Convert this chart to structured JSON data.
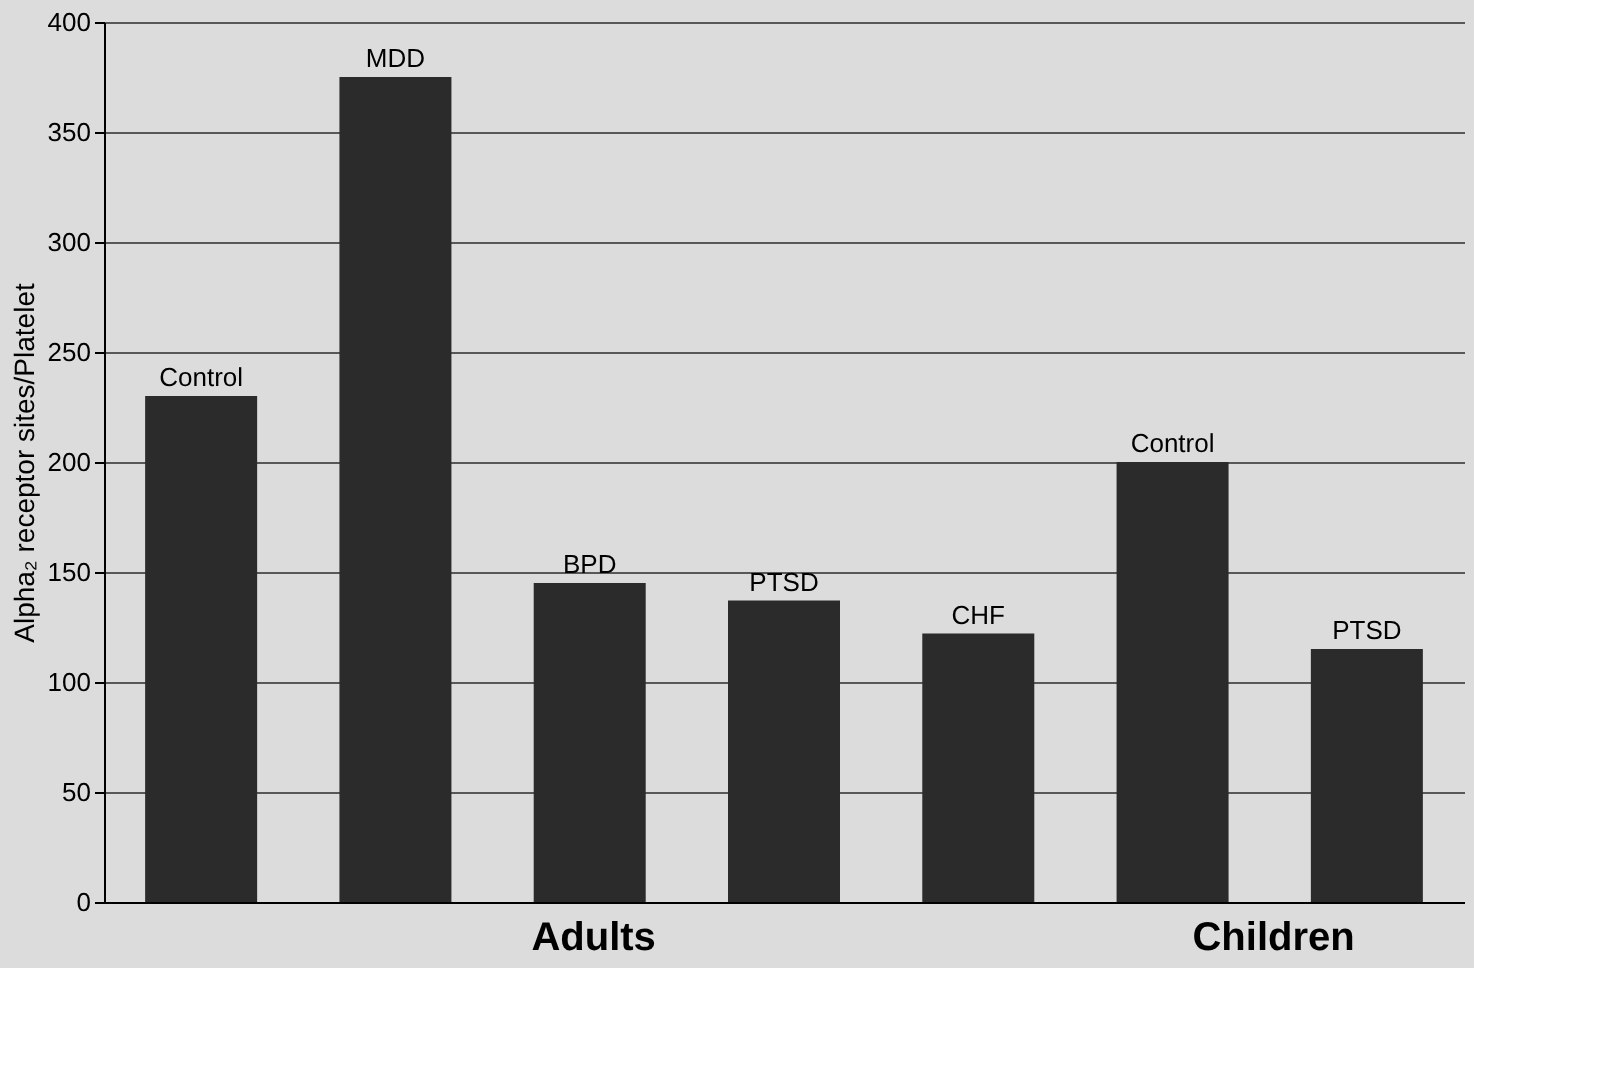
{
  "chart_data": {
    "type": "bar",
    "ylabel": "Alpha₂ receptor sites/Platelet",
    "categories": [
      "Control",
      "MDD",
      "BPD",
      "PTSD",
      "CHF",
      "Control",
      "PTSD"
    ],
    "values": [
      230,
      375,
      145,
      137,
      122,
      200,
      115
    ],
    "color": "#2b2b2b",
    "ylim": [
      0,
      400
    ],
    "yticks": [
      0,
      50,
      100,
      150,
      200,
      250,
      300,
      350,
      400
    ],
    "grid": "y",
    "tick_labels": "y",
    "annotations": [
      "Adults",
      "Children"
    ]
  }
}
